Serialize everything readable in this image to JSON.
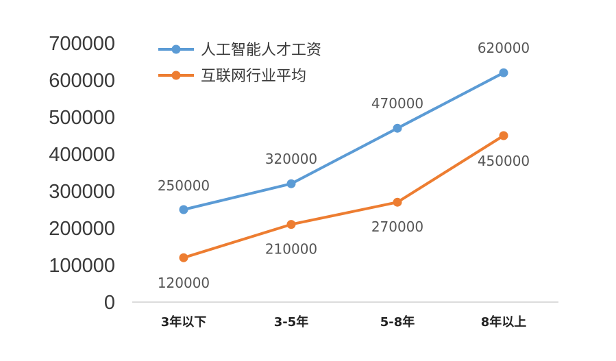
{
  "chart_data": {
    "type": "line",
    "categories": [
      "3年以下",
      "3-5年",
      "5-8年",
      "8年以上"
    ],
    "series": [
      {
        "name": "人工智能人才工资",
        "color": "#5b9bd5",
        "values": [
          250000,
          320000,
          470000,
          620000
        ]
      },
      {
        "name": "互联网行业平均",
        "color": "#ed7d31",
        "values": [
          120000,
          210000,
          270000,
          450000
        ]
      }
    ],
    "data_labels": {
      "series_0": [
        "250000",
        "320000",
        "470000",
        "620000"
      ],
      "series_1": [
        "120000",
        "210000",
        "270000",
        "450000"
      ]
    },
    "y_ticks": [
      "0",
      "100000",
      "200000",
      "300000",
      "400000",
      "500000",
      "600000",
      "700000"
    ],
    "ylim": [
      0,
      700000
    ],
    "grid": false,
    "legend": "top-left",
    "title": "",
    "xlabel": "",
    "ylabel": ""
  }
}
